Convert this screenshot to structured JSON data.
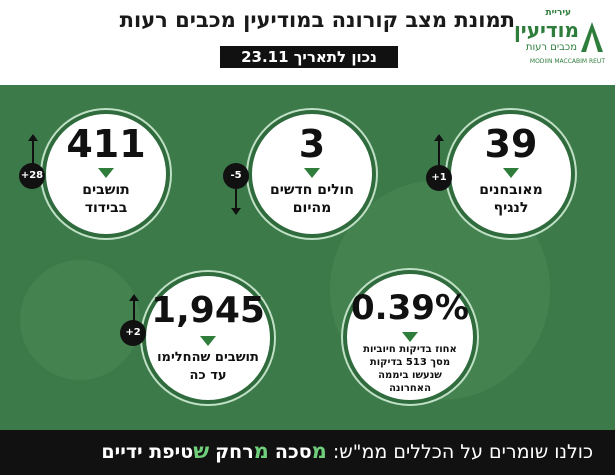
{
  "header": {
    "title": "תמונת מצב קורונה במודיעין מכבים רעות",
    "date": "נכון לתאריך 23.11"
  },
  "logo": {
    "top": "עיריית",
    "main": "מודיעין",
    "sub": "מכבים רעות",
    "en": "MODIIN MACCABIM REUT"
  },
  "stats": {
    "confirmed": {
      "value": "39",
      "label1": "מאובחנים",
      "label2": "לנגיף",
      "change": "+1"
    },
    "new_patients": {
      "value": "3",
      "label1": "חולים חדשים",
      "label2": "מהיום",
      "change": "-5"
    },
    "isolation": {
      "value": "411",
      "label1": "תושבים",
      "label2": "בבידוד",
      "change": "+28"
    },
    "positive_rate": {
      "value": "0.39%",
      "label1": "אחוז בדיקות חיוביות",
      "label2": "מסך 513 בדיקות",
      "label3": "שנעשו ביממה",
      "label4": "האחרונה"
    },
    "recovered": {
      "value": "1,945",
      "label1": "תושבים שהחלימו",
      "label2": "עד כה",
      "change": "+2"
    }
  },
  "footer": {
    "prefix": "כולנו שומרים על הכללים ממ\"ש:",
    "m1": "מ",
    "w1": "סכה",
    "m2": "מ",
    "w2": "רחק",
    "m3": "ש",
    "w3": "טיפת ידיים"
  },
  "colors": {
    "green_bg": "#3d7a4a",
    "accent_green": "#2e7d3b",
    "footer_bg": "#111111"
  }
}
